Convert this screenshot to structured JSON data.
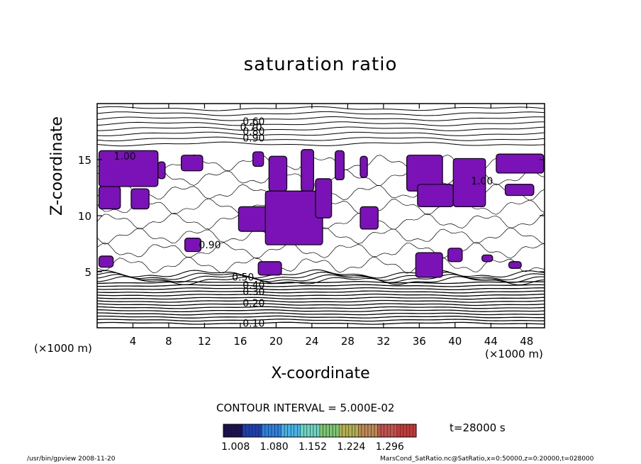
{
  "chart_data": {
    "type": "heatmap",
    "title": "saturation ratio",
    "xlabel": "X-coordinate",
    "ylabel": "Z-coordinate",
    "x_unit": "(×1000 m)",
    "y_unit": "(×1000 m)",
    "xlim": [
      0,
      50
    ],
    "ylim": [
      0,
      20
    ],
    "x_ticks": [
      "4",
      "8",
      "12",
      "16",
      "20",
      "24",
      "28",
      "32",
      "36",
      "40",
      "44",
      "48"
    ],
    "y_ticks": [
      "5",
      "10",
      "15"
    ],
    "x_tick_values": [
      4,
      8,
      12,
      16,
      20,
      24,
      28,
      32,
      36,
      40,
      44,
      48
    ],
    "y_tick_values": [
      5,
      10,
      15
    ],
    "contour_interval": "CONTOUR INTERVAL = 5.000E-02",
    "contour_labels": [
      {
        "text": "0.60",
        "x": 17.5,
        "z": 18.1
      },
      {
        "text": "0.70",
        "x": 17.2,
        "z": 17.6
      },
      {
        "text": "0.80",
        "x": 17.5,
        "z": 17.2
      },
      {
        "text": "0.90",
        "x": 17.5,
        "z": 16.6
      },
      {
        "text": "1.00",
        "x": 3.1,
        "z": 15.0
      },
      {
        "text": "1.00",
        "x": 43.0,
        "z": 12.8
      },
      {
        "text": "0.90",
        "x": 12.6,
        "z": 7.1
      },
      {
        "text": "0.50",
        "x": 16.3,
        "z": 4.2
      },
      {
        "text": "0.40",
        "x": 17.5,
        "z": 3.5
      },
      {
        "text": "0.30",
        "x": 17.5,
        "z": 2.9
      },
      {
        "text": "0.20",
        "x": 17.5,
        "z": 1.9
      },
      {
        "text": "0.10",
        "x": 17.5,
        "z": 0.1
      }
    ],
    "shaded_threshold": "> 1.00",
    "shade_color": "#7b12b8",
    "colorbar": {
      "tick_labels": [
        "1.008",
        "1.080",
        "1.152",
        "1.224",
        "1.296"
      ],
      "colors": [
        "#1a0f4f",
        "#1d3fae",
        "#2e7fe0",
        "#42b4e6",
        "#6fd3c1",
        "#7cc870",
        "#b0b050",
        "#c08a55",
        "#c2524c",
        "#c23a3a"
      ]
    },
    "time_label": "t=28000 s",
    "shaded_regions": [
      {
        "x": [
          0.2,
          6.8
        ],
        "z": [
          12.6,
          15.8
        ]
      },
      {
        "x": [
          0.2,
          2.6
        ],
        "z": [
          10.6,
          12.6
        ]
      },
      {
        "x": [
          3.8,
          5.8
        ],
        "z": [
          10.6,
          12.4
        ]
      },
      {
        "x": [
          9.4,
          11.8
        ],
        "z": [
          14.0,
          15.4
        ]
      },
      {
        "x": [
          6.8,
          7.6
        ],
        "z": [
          13.3,
          14.8
        ]
      },
      {
        "x": [
          17.4,
          18.6
        ],
        "z": [
          14.4,
          15.7
        ]
      },
      {
        "x": [
          15.8,
          21.6
        ],
        "z": [
          8.6,
          10.8
        ]
      },
      {
        "x": [
          18.8,
          25.2
        ],
        "z": [
          7.4,
          12.2
        ]
      },
      {
        "x": [
          19.2,
          21.2
        ],
        "z": [
          12.2,
          15.3
        ]
      },
      {
        "x": [
          22.8,
          24.2
        ],
        "z": [
          12.2,
          15.9
        ]
      },
      {
        "x": [
          24.4,
          26.2
        ],
        "z": [
          9.8,
          13.3
        ]
      },
      {
        "x": [
          26.6,
          27.6
        ],
        "z": [
          13.2,
          15.8
        ]
      },
      {
        "x": [
          29.4,
          30.2
        ],
        "z": [
          13.4,
          15.3
        ]
      },
      {
        "x": [
          34.6,
          38.6
        ],
        "z": [
          12.2,
          15.4
        ]
      },
      {
        "x": [
          35.8,
          39.8
        ],
        "z": [
          10.8,
          12.8
        ]
      },
      {
        "x": [
          39.8,
          43.4
        ],
        "z": [
          10.8,
          15.1
        ]
      },
      {
        "x": [
          44.6,
          49.9
        ],
        "z": [
          13.8,
          15.5
        ]
      },
      {
        "x": [
          45.6,
          48.8
        ],
        "z": [
          11.8,
          12.8
        ]
      },
      {
        "x": [
          29.4,
          31.4
        ],
        "z": [
          8.8,
          10.8
        ]
      },
      {
        "x": [
          0.2,
          1.8
        ],
        "z": [
          5.4,
          6.4
        ]
      },
      {
        "x": [
          9.8,
          11.6
        ],
        "z": [
          6.8,
          8.0
        ]
      },
      {
        "x": [
          18.0,
          20.6
        ],
        "z": [
          4.7,
          5.9
        ]
      },
      {
        "x": [
          35.6,
          38.6
        ],
        "z": [
          4.5,
          6.7
        ]
      },
      {
        "x": [
          39.2,
          40.8
        ],
        "z": [
          5.9,
          7.1
        ]
      },
      {
        "x": [
          43.0,
          44.2
        ],
        "z": [
          5.9,
          6.5
        ]
      },
      {
        "x": [
          46.0,
          47.4
        ],
        "z": [
          5.3,
          5.9
        ]
      }
    ]
  },
  "footer": {
    "left": "/usr/bin/gpview  2008-11-20",
    "right": "MarsCond_SatRatio.nc@SatRatio,x=0:50000,z=0:20000,t=028000"
  }
}
